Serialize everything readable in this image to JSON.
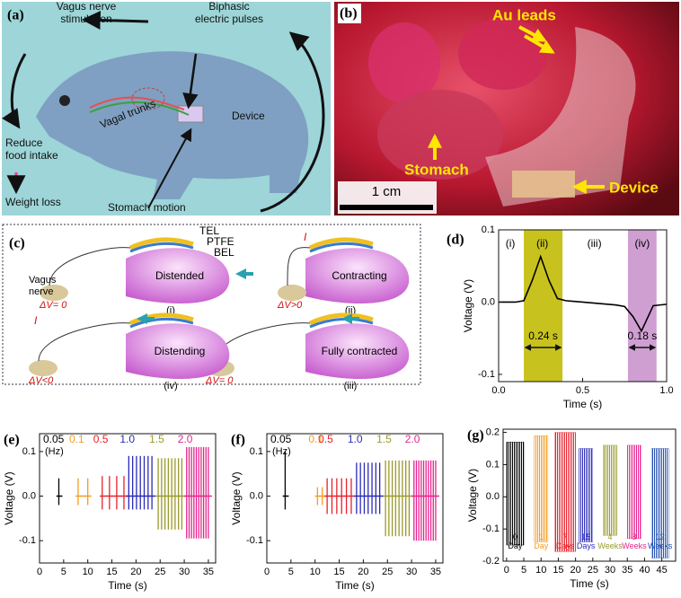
{
  "panel_a": {
    "tag": "(a)",
    "vns": [
      "Vagus nerve",
      "stimulation"
    ],
    "pulses": [
      "Biphasic",
      "electric pulses"
    ],
    "vagal": "Vagal trunks",
    "device": "Device",
    "reduce": [
      "Reduce",
      "food intake"
    ],
    "weight": "Weight loss",
    "stomach": "Stomach motion"
  },
  "panel_b": {
    "tag": "(b)",
    "leads": "Au leads",
    "stomach": "Stomach",
    "device": "Device",
    "scale": "1 cm"
  },
  "panel_c": {
    "tag": "(c)",
    "layers": [
      "TEL",
      "PTFE",
      "BEL"
    ],
    "nerve": [
      "Vagus",
      "nerve"
    ],
    "states": [
      "Distended",
      "Contracting",
      "Fully contracted",
      "Distending"
    ],
    "steps": [
      "(i)",
      "(ii)",
      "(iii)",
      "(iv)"
    ],
    "voltages": [
      "ΔV= 0",
      "ΔV>0",
      "ΔV= 0",
      "ΔV<0"
    ],
    "current": "I"
  },
  "chart_data": [
    {
      "type": "line",
      "tag": "(d)",
      "x_label": "Time (s)",
      "y_label": "Voltage (V)",
      "x": [
        0,
        0.1,
        0.15,
        0.2,
        0.25,
        0.3,
        0.35,
        0.4,
        0.5,
        0.6,
        0.7,
        0.75,
        0.8,
        0.85,
        0.9,
        0.92,
        1.0
      ],
      "values": [
        0,
        0,
        0.002,
        0.03,
        0.063,
        0.03,
        0.005,
        0.002,
        0,
        -0.002,
        -0.004,
        -0.006,
        -0.02,
        -0.04,
        -0.015,
        -0.005,
        -0.003
      ],
      "color": "#000000",
      "bands": [
        {
          "xlim": [
            0.15,
            0.38
          ],
          "color": "#c8c21e"
        },
        {
          "xlim": [
            0.77,
            0.94
          ],
          "color": "#cf9fd2"
        }
      ],
      "annotations": [
        "(i)",
        "(ii)",
        "(iii)",
        "(iv)"
      ],
      "durations": [
        "0.24 s",
        "0.18 s"
      ],
      "xlim": [
        0,
        1
      ],
      "xticks": [
        {
          "value": 0,
          "label": "0.0"
        },
        0.5,
        {
          "value": 1,
          "label": "1.0"
        }
      ],
      "ylim": [
        -0.11,
        0.1
      ],
      "yticks": [
        -0.1,
        {
          "value": 0,
          "label": "0.0"
        },
        0.1
      ]
    },
    {
      "type": "spikes",
      "tag": "(e)",
      "x_label": "Time (s)",
      "y_label": "Voltage (V)",
      "unit_label": "(Hz)",
      "series": [
        {
          "name": "0.05",
          "color": "#000000",
          "x": [
            4
          ],
          "values": [
            0.04
          ],
          "troughs": [
            -0.02
          ]
        },
        {
          "name": "0.1",
          "color": "#f39c1e",
          "x": [
            8,
            10
          ],
          "values": [
            0.04,
            0.04
          ],
          "troughs": [
            -0.02,
            -0.02
          ]
        },
        {
          "name": "0.5",
          "color": "#e8202a",
          "x": [
            13,
            14.5,
            16,
            17.5
          ],
          "values": [
            0.045,
            0.045,
            0.045,
            0.045
          ],
          "troughs": [
            -0.03,
            -0.03,
            -0.03,
            -0.03
          ]
        },
        {
          "name": "1.0",
          "color": "#2a2ab8",
          "x": [
            18.5,
            19.3,
            20.1,
            20.9,
            21.7,
            22.5,
            23.3
          ],
          "values": [
            0.09,
            0.09,
            0.09,
            0.09,
            0.09,
            0.09,
            0.09
          ],
          "troughs": [
            -0.03,
            -0.03,
            -0.03,
            -0.03,
            -0.03,
            -0.03,
            -0.03
          ]
        },
        {
          "name": "1.5",
          "color": "#9a9a2a",
          "x": [
            24.6,
            25.3,
            26,
            26.7,
            27.4,
            28.1,
            28.8,
            29.5
          ],
          "values": [
            0.085,
            0.085,
            0.085,
            0.085,
            0.085,
            0.085,
            0.085,
            0.085
          ],
          "troughs": [
            -0.075,
            -0.075,
            -0.075,
            -0.075,
            -0.075,
            -0.075,
            -0.075,
            -0.075
          ]
        },
        {
          "name": "2.0",
          "color": "#e6238c",
          "x": [
            30.5,
            31,
            31.5,
            32,
            32.5,
            33,
            33.5,
            34,
            34.5,
            35
          ],
          "values": [
            0.11,
            0.11,
            0.11,
            0.11,
            0.11,
            0.11,
            0.11,
            0.11,
            0.11,
            0.11
          ],
          "troughs": [
            -0.095,
            -0.095,
            -0.095,
            -0.095,
            -0.095,
            -0.095,
            -0.095,
            -0.095,
            -0.095,
            -0.095
          ]
        }
      ],
      "xlim": [
        0,
        36.5
      ],
      "xticks": [
        0,
        5,
        10,
        15,
        20,
        25,
        30,
        35
      ],
      "ylim": [
        -0.15,
        0.14
      ],
      "yticks": [
        -0.1,
        {
          "value": 0,
          "label": "0.0"
        },
        0.1
      ]
    },
    {
      "type": "spikes",
      "tag": "(f)",
      "x_label": "Time (s)",
      "y_label": "Voltage (V)",
      "unit_label": "(Hz)",
      "series": [
        {
          "name": "0.05",
          "color": "#000000",
          "x": [
            3.8
          ],
          "values": [
            0.1
          ],
          "troughs": [
            -0.03
          ]
        },
        {
          "name": "0.1",
          "color": "#f39c1e",
          "x": [
            10.5,
            11.5
          ],
          "values": [
            0.02,
            0.02
          ],
          "troughs": [
            -0.02,
            -0.02
          ]
        },
        {
          "name": "0.5",
          "color": "#e8202a",
          "x": [
            12.5,
            13.5,
            14.5,
            15.5,
            16.5,
            17.5
          ],
          "values": [
            0.04,
            0.04,
            0.04,
            0.04,
            0.04,
            0.04
          ],
          "troughs": [
            -0.04,
            -0.04,
            -0.04,
            -0.04,
            -0.04,
            -0.04
          ]
        },
        {
          "name": "1.0",
          "color": "#2a2ab8",
          "x": [
            18.6,
            19.4,
            20.2,
            21,
            21.8,
            22.6,
            23.4
          ],
          "values": [
            0.075,
            0.075,
            0.075,
            0.075,
            0.075,
            0.075,
            0.075
          ],
          "troughs": [
            -0.04,
            -0.04,
            -0.04,
            -0.04,
            -0.04,
            -0.04,
            -0.04
          ]
        },
        {
          "name": "1.5",
          "color": "#9a9a2a",
          "x": [
            24.6,
            25.3,
            26,
            26.7,
            27.4,
            28.1,
            28.8,
            29.5
          ],
          "values": [
            0.08,
            0.08,
            0.08,
            0.08,
            0.08,
            0.08,
            0.08,
            0.08
          ],
          "troughs": [
            -0.09,
            -0.09,
            -0.09,
            -0.09,
            -0.09,
            -0.09,
            -0.09,
            -0.09
          ]
        },
        {
          "name": "2.0",
          "color": "#e6238c",
          "x": [
            30.5,
            31,
            31.5,
            32,
            32.5,
            33,
            33.5,
            34,
            34.5,
            35
          ],
          "values": [
            0.08,
            0.08,
            0.08,
            0.08,
            0.08,
            0.08,
            0.08,
            0.08,
            0.08,
            0.08
          ],
          "troughs": [
            -0.1,
            -0.1,
            -0.1,
            -0.1,
            -0.1,
            -0.1,
            -0.1,
            -0.1,
            -0.1,
            -0.1
          ]
        }
      ],
      "xlim": [
        0,
        36.5
      ],
      "xticks": [
        0,
        5,
        10,
        15,
        20,
        25,
        30,
        35
      ],
      "ylim": [
        -0.15,
        0.14
      ],
      "yticks": [
        -0.1,
        {
          "value": 0,
          "label": "0.0"
        },
        0.1
      ]
    },
    {
      "type": "range",
      "tag": "(g)",
      "x_label": "Time (s)",
      "y_label": "Voltage (V)",
      "series": [
        {
          "name": "0 Day",
          "color": "#000000",
          "x": [
            0,
            5
          ],
          "values": [
            0.17,
            -0.15
          ]
        },
        {
          "name": "1 Day",
          "color": "#f39c1e",
          "x": [
            8,
            12
          ],
          "values": [
            0.19,
            -0.14
          ]
        },
        {
          "name": "7 Days",
          "color": "#e8202a",
          "x": [
            14,
            20
          ],
          "values": [
            0.2,
            -0.17
          ]
        },
        {
          "name": "15 Days",
          "color": "#2a2ab8",
          "x": [
            21,
            25
          ],
          "values": [
            0.15,
            -0.14
          ]
        },
        {
          "name": "4 Weeks",
          "color": "#9a9a2a",
          "x": [
            28,
            32
          ],
          "values": [
            0.16,
            -0.12
          ]
        },
        {
          "name": "8 Weeks",
          "color": "#e6238c",
          "x": [
            35,
            39
          ],
          "values": [
            0.16,
            -0.13
          ]
        },
        {
          "name": "12 Weeks",
          "color": "#2450b0",
          "x": [
            42,
            47
          ],
          "values": [
            0.15,
            -0.19
          ]
        }
      ],
      "xlim": [
        -1,
        49
      ],
      "xticks": [
        0,
        5,
        10,
        15,
        20,
        25,
        30,
        35,
        40,
        45
      ],
      "ylim": [
        -0.2,
        0.21
      ],
      "yticks": [
        -0.2,
        -0.1,
        {
          "value": 0,
          "label": "0.0"
        },
        0.1,
        0.2
      ]
    }
  ]
}
